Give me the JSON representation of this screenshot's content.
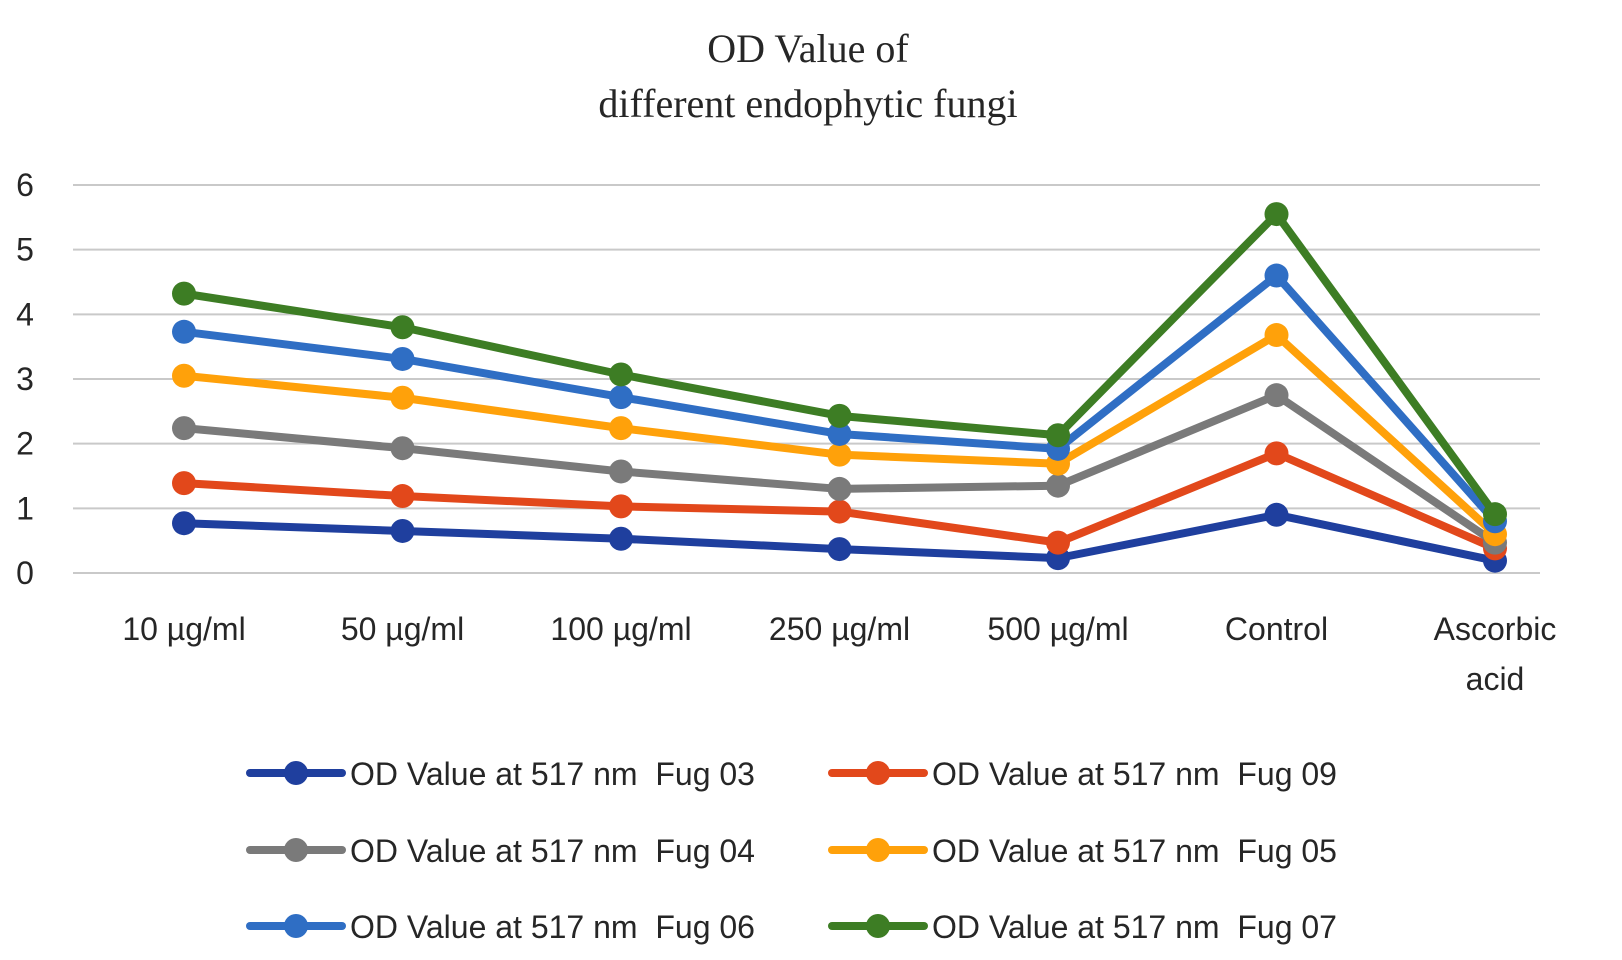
{
  "chart_data": {
    "type": "line",
    "title": [
      "OD Value of",
      "different endophytic fungi"
    ],
    "xlabel": "",
    "ylabel": "",
    "ylim": [
      0,
      6
    ],
    "yticks": [
      "0",
      "1",
      "2",
      "3",
      "4",
      "5",
      "6"
    ],
    "grid": true,
    "legend_position": "bottom",
    "categories": [
      [
        "10 µg/ml"
      ],
      [
        "50 µg/ml"
      ],
      [
        "100 µg/ml"
      ],
      [
        "250 µg/ml"
      ],
      [
        "500 µg/ml"
      ],
      [
        "Control"
      ],
      [
        "Ascorbic",
        "acid"
      ]
    ],
    "series": [
      {
        "name": "OD Value at 517 nm  Fug 03",
        "color": "#1f3f9e",
        "values": [
          0.77,
          0.65,
          0.53,
          0.37,
          0.23,
          0.9,
          0.19
        ]
      },
      {
        "name": "OD Value at 517 nm  Fug 09",
        "color": "#e2481b",
        "values": [
          1.39,
          1.19,
          1.03,
          0.95,
          0.47,
          1.85,
          0.38
        ]
      },
      {
        "name": "OD Value at 517 nm  Fug 04",
        "color": "#7a7a7a",
        "values": [
          2.24,
          1.93,
          1.57,
          1.3,
          1.35,
          2.75,
          0.47
        ]
      },
      {
        "name": "OD Value at 517 nm  Fug 05",
        "color": "#ffa10a",
        "values": [
          3.05,
          2.71,
          2.24,
          1.83,
          1.69,
          3.68,
          0.6
        ]
      },
      {
        "name": "OD Value at 517 nm  Fug 06",
        "color": "#2f6ec4",
        "values": [
          3.73,
          3.31,
          2.72,
          2.15,
          1.92,
          4.6,
          0.8
        ]
      },
      {
        "name": "OD Value at 517 nm  Fug 07",
        "color": "#3d7d24",
        "values": [
          4.32,
          3.8,
          3.07,
          2.43,
          2.13,
          5.55,
          0.91
        ]
      }
    ],
    "legend_order": [
      0,
      1,
      2,
      3,
      4,
      5
    ]
  }
}
